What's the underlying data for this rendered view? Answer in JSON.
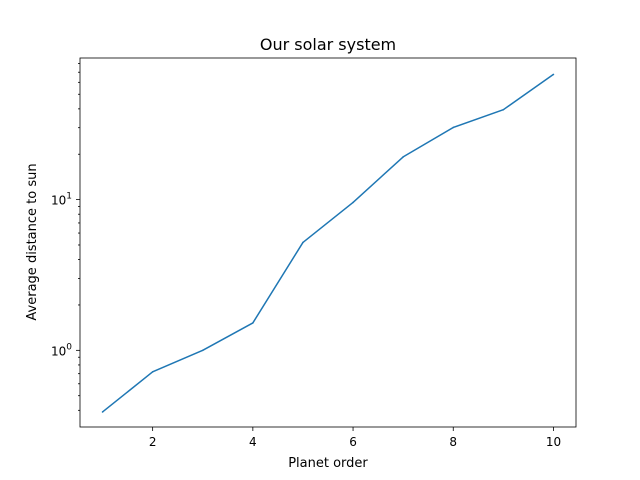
{
  "chart_data": {
    "type": "line",
    "title": "Our solar system",
    "xlabel": "Planet order",
    "ylabel": "Average distance to sun",
    "xlim": [
      0.55,
      10.45
    ],
    "ylim": [
      0.31,
      87
    ],
    "yscale": "log",
    "grid": false,
    "x_ticks": [
      2,
      4,
      6,
      8,
      10
    ],
    "x_tick_labels": [
      "2",
      "4",
      "6",
      "8",
      "10"
    ],
    "y_major_ticks": [
      1,
      10
    ],
    "y_tick_labels": [
      "10",
      "10"
    ],
    "y_tick_exponents": [
      "0",
      "1"
    ],
    "series": [
      {
        "color": "#1f77b4",
        "x": [
          1,
          2,
          3,
          4,
          5,
          6,
          7,
          8,
          9,
          10
        ],
        "y": [
          0.39,
          0.72,
          1.0,
          1.52,
          5.2,
          9.58,
          19.2,
          30.1,
          39.5,
          67.7
        ]
      }
    ]
  }
}
